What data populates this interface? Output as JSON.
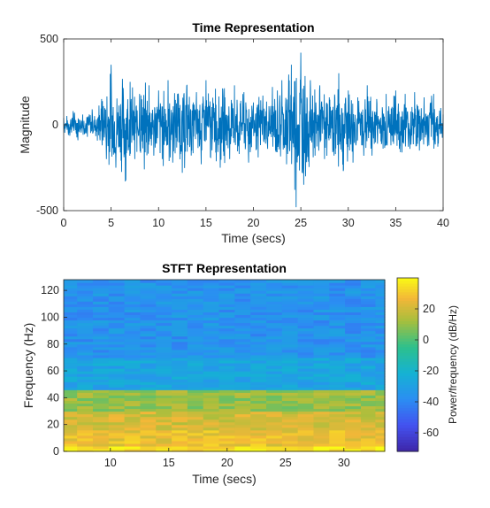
{
  "chart_data": [
    {
      "type": "line",
      "title": "Time Representation",
      "xlabel": "Time (secs)",
      "ylabel": "Magnitude",
      "xlim": [
        0,
        40
      ],
      "ylim": [
        -500,
        500
      ],
      "xticks": [
        "0",
        "5",
        "10",
        "15",
        "20",
        "25",
        "30",
        "35",
        "40"
      ],
      "yticks": [
        "500",
        "0",
        "-500"
      ],
      "color": "#0072bd",
      "series": [
        {
          "x": [
            0,
            0.5,
            1,
            1.5,
            2,
            2.5,
            3,
            3.5,
            4,
            4.5,
            5,
            5.5,
            6,
            6.5,
            7,
            7.5,
            8,
            8.5,
            9,
            9.5,
            10,
            10.5,
            11,
            11.5,
            12,
            12.5,
            13,
            13.5,
            14,
            14.5,
            15,
            15.5,
            16,
            16.5,
            17,
            17.5,
            18,
            18.5,
            19,
            19.5,
            20,
            20.5,
            21,
            21.5,
            22,
            22.5,
            23,
            23.5,
            24,
            24.5,
            25,
            25.5,
            26,
            26.5,
            27,
            27.5,
            28,
            28.5,
            29,
            29.5,
            30,
            30.5,
            31,
            31.5,
            32,
            32.5,
            33,
            33.5,
            34,
            34.5,
            35,
            35.5,
            36,
            36.5,
            37,
            37.5,
            38,
            38.5,
            39,
            39.5,
            40
          ],
          "y": [
            40,
            -60,
            80,
            -90,
            60,
            -70,
            90,
            -40,
            150,
            -200,
            350,
            -250,
            120,
            -330,
            250,
            -200,
            180,
            -260,
            230,
            -180,
            200,
            -240,
            260,
            -220,
            180,
            -280,
            230,
            -150,
            190,
            -230,
            260,
            -190,
            210,
            -250,
            160,
            -200,
            230,
            -170,
            190,
            -220,
            130,
            -190,
            170,
            -140,
            220,
            -160,
            260,
            -230,
            350,
            -480,
            420,
            -300,
            260,
            -180,
            230,
            -200,
            160,
            -180,
            300,
            -260,
            200,
            -220,
            160,
            -120,
            230,
            -180,
            150,
            -110,
            180,
            -120,
            200,
            -160,
            180,
            -140,
            190,
            -150,
            160,
            -120,
            180,
            -110,
            60
          ]
        }
      ]
    },
    {
      "type": "heatmap",
      "title": "STFT Representation",
      "xlabel": "Time (secs)",
      "ylabel": "Frequency (Hz)",
      "xlim": [
        6,
        33.5
      ],
      "ylim": [
        0,
        128
      ],
      "xticks": [
        "10",
        "15",
        "20",
        "25",
        "30"
      ],
      "yticks": [
        "0",
        "20",
        "40",
        "60",
        "80",
        "100",
        "120"
      ],
      "colorbar": {
        "label": "Power/frequency (dB/Hz)",
        "range": [
          -72,
          40
        ],
        "ticks": [
          "20",
          "0",
          "-20",
          "-40",
          "-60"
        ]
      },
      "time_bins": [
        6.5,
        7.8,
        9.2,
        10.5,
        11.9,
        13.2,
        14.6,
        15.9,
        17.3,
        18.6,
        20.0,
        21.3,
        22.7,
        24.0,
        25.4,
        26.7,
        28.1,
        29.4,
        30.8,
        32.1,
        33.3
      ],
      "freq_bands": [
        {
          "range": [
            0,
            4
          ],
          "level_db": 36
        },
        {
          "range": [
            4,
            15
          ],
          "level_db": 26
        },
        {
          "range": [
            15,
            30
          ],
          "level_db": 20
        },
        {
          "range": [
            30,
            45
          ],
          "level_db": 10
        },
        {
          "range": [
            45,
            70
          ],
          "level_db": -28
        },
        {
          "range": [
            70,
            128
          ],
          "level_db": -36
        }
      ]
    }
  ]
}
